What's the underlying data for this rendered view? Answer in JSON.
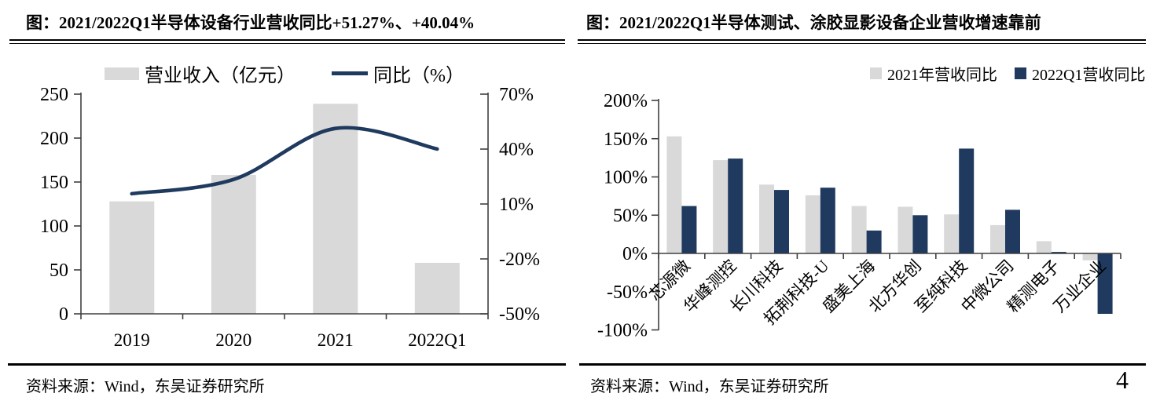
{
  "page": {
    "number": "4"
  },
  "colors": {
    "bar_gray": "#d9d9d9",
    "navy": "#1f3a5e",
    "axis_line": "#404040",
    "rule": "#000000"
  },
  "panels": [
    {
      "title": "图：2021/2022Q1半导体设备行业营收同比+51.27%、+40.04%",
      "source": "资料来源：Wind，东吴证券研究所"
    },
    {
      "title": "图：2021/2022Q1半导体测试、涂胶显影设备企业营收增速靠前",
      "source": "资料来源：Wind，东吴证券研究所"
    }
  ],
  "chart_data": [
    {
      "type": "bar+line dual axis",
      "title": "2021/2022Q1半导体设备行业营收同比+51.27%、+40.04%",
      "categories": [
        "2019",
        "2020",
        "2021",
        "2022Q1"
      ],
      "series": [
        {
          "name": "营业收入（亿元）",
          "type": "bar",
          "axis": "left",
          "color": "#d9d9d9",
          "values": [
            128,
            158,
            239,
            58
          ]
        },
        {
          "name": "同比（%）",
          "type": "line",
          "axis": "right",
          "color": "#1f3a5e",
          "values": [
            15.6,
            23.4,
            51.27,
            40.04
          ]
        }
      ],
      "left_axis": {
        "ticks": [
          0,
          50,
          100,
          150,
          200,
          250
        ],
        "range": [
          0,
          250
        ],
        "suffix": ""
      },
      "right_axis": {
        "ticks": [
          -50,
          -20,
          10,
          40,
          70
        ],
        "range": [
          -50,
          70
        ],
        "suffix": "%"
      },
      "legend_position": "top",
      "grid": "off"
    },
    {
      "type": "bar",
      "title": "2021/2022Q1半导体测试、涂胶显影设备企业营收增速靠前",
      "categories": [
        "芯源微",
        "华峰测控",
        "长川科技",
        "拓荆科技-U",
        "盛美上海",
        "北方华创",
        "至纯科技",
        "中微公司",
        "精测电子",
        "万业企业"
      ],
      "series": [
        {
          "name": "2021年营收同比",
          "color": "#d9d9d9",
          "values": [
            153,
            122,
            90,
            76,
            62,
            61,
            51,
            37,
            16,
            -9
          ]
        },
        {
          "name": "2022Q1营收同比",
          "color": "#1f3a5e",
          "values": [
            62,
            124,
            83,
            86,
            30,
            50,
            137,
            57,
            2,
            -79
          ]
        }
      ],
      "y_axis": {
        "ticks": [
          -100,
          -50,
          0,
          50,
          100,
          150,
          200
        ],
        "range": [
          -100,
          200
        ],
        "suffix": "%"
      },
      "legend_position": "top",
      "grid": "off"
    }
  ]
}
